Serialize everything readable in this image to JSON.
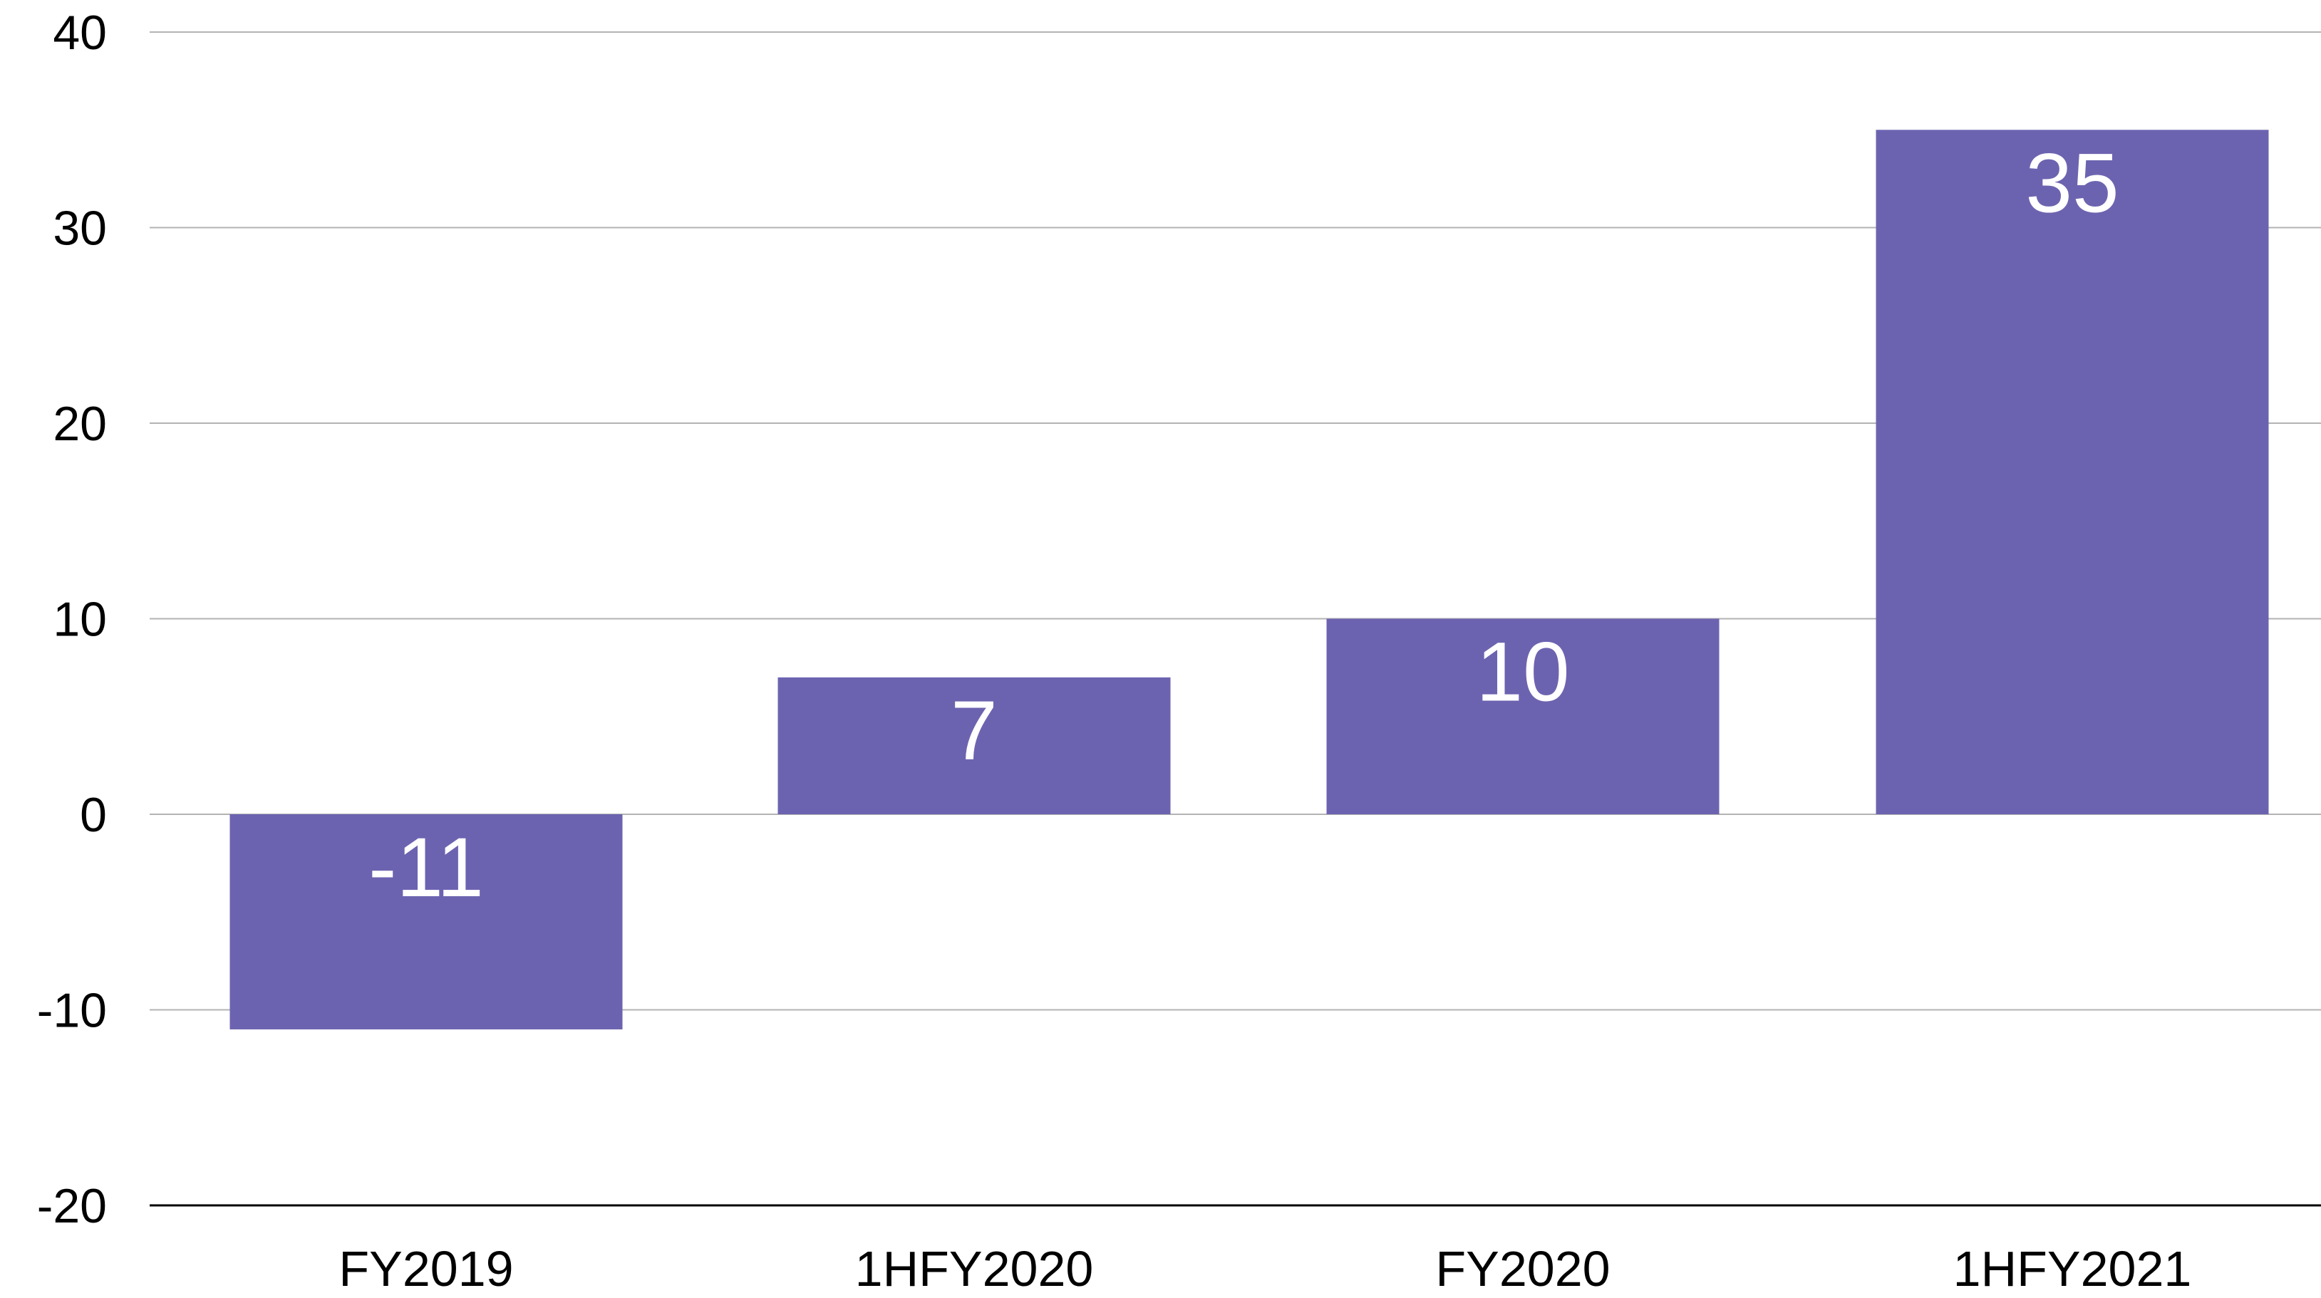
{
  "chart_data": {
    "type": "bar",
    "categories": [
      "FY2019",
      "1HFY2020",
      "FY2020",
      "1HFY2021"
    ],
    "values": [
      -11,
      7,
      10,
      35
    ],
    "data_labels": [
      "-11",
      "7",
      "10",
      "35"
    ],
    "ylim": [
      -20,
      40
    ],
    "yticks": [
      40,
      30,
      20,
      10,
      0,
      -10,
      -20
    ],
    "ytick_labels": [
      "40",
      "30",
      "20",
      "10",
      "0",
      "-10",
      "-20"
    ],
    "grid": true,
    "bar_color": "#6c63b0",
    "label_color": "#ffffff",
    "gridline_color": "#b3b3b3",
    "axis_color": "#000000",
    "title": "",
    "xlabel": "",
    "ylabel": ""
  }
}
